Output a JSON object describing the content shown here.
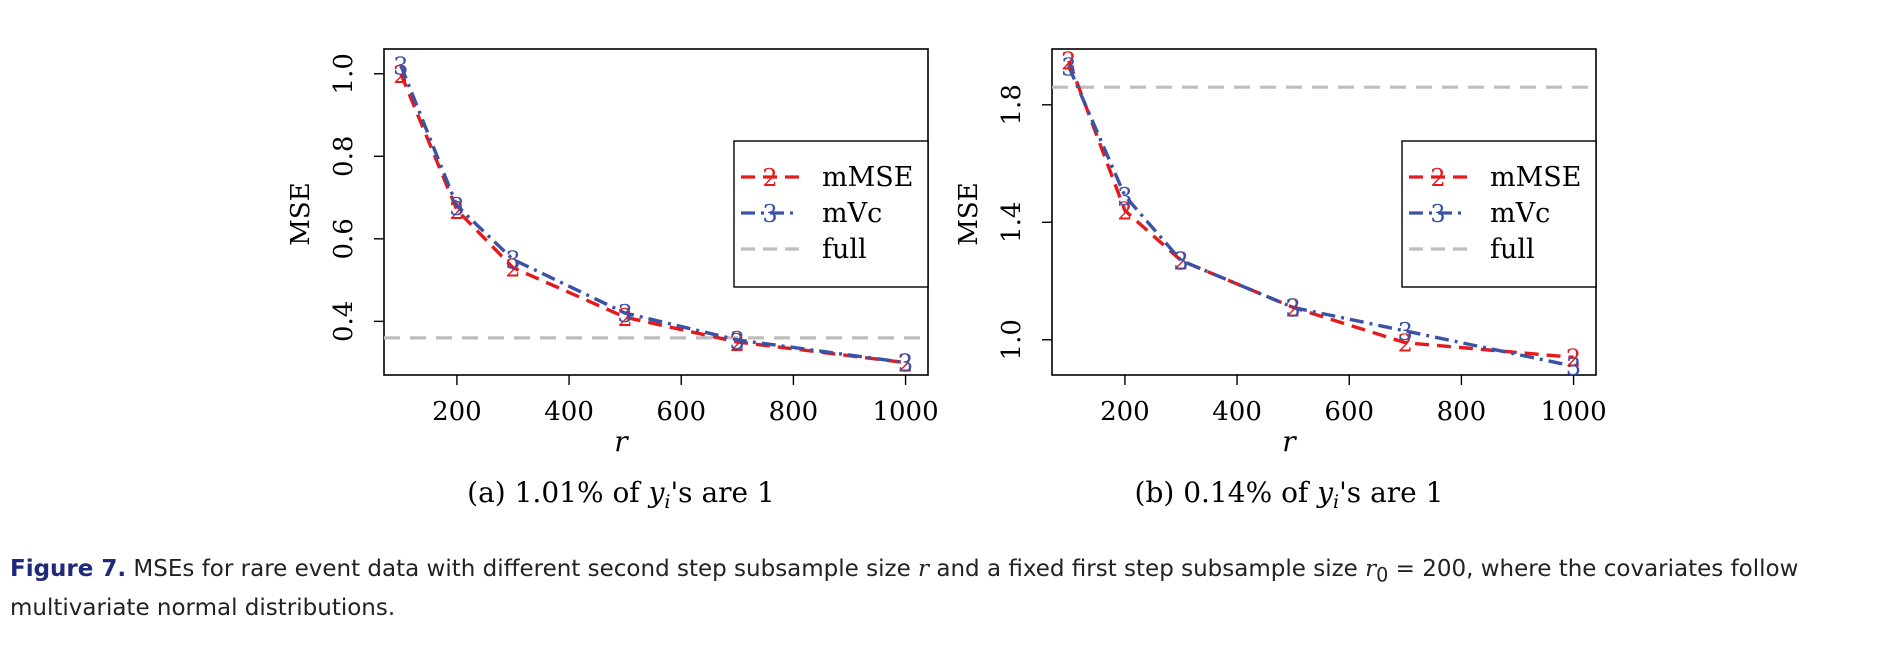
{
  "colors": {
    "mMSE": "#e41a1c",
    "mVc": "#3a53a4",
    "full": "#bdbdbd",
    "caption_label": "#1f2a7a"
  },
  "chart_data": [
    {
      "type": "line",
      "subtitle": "(a) 1.01% of y_i's are 1",
      "xlabel": "r",
      "ylabel": "MSE",
      "xlim": [
        70,
        1040
      ],
      "ylim": [
        0.27,
        1.06
      ],
      "xticks": [
        200,
        400,
        600,
        800,
        1000
      ],
      "yticks": [
        0.4,
        0.6,
        0.8,
        1.0
      ],
      "ytick_labels": [
        "0.4",
        "0.6",
        "0.8",
        "1.0"
      ],
      "grid": false,
      "legend_position": "right",
      "x": [
        100,
        200,
        300,
        500,
        700,
        1000
      ],
      "series": [
        {
          "name": "mMSE",
          "marker": "2",
          "style": "dashed",
          "values": [
            1.0,
            0.67,
            0.53,
            0.41,
            0.35,
            0.3
          ]
        },
        {
          "name": "mVc",
          "marker": "3",
          "style": "dashdot",
          "values": [
            1.02,
            0.68,
            0.55,
            0.42,
            0.355,
            0.3
          ]
        },
        {
          "name": "full",
          "style": "dashed-horizontal",
          "value": 0.36
        }
      ]
    },
    {
      "type": "line",
      "subtitle": "(b) 0.14% of y_i's are 1",
      "xlabel": "r",
      "ylabel": "MSE",
      "xlim": [
        70,
        1040
      ],
      "ylim": [
        0.88,
        1.99
      ],
      "xticks": [
        200,
        400,
        600,
        800,
        1000
      ],
      "yticks": [
        1.0,
        1.4,
        1.8
      ],
      "ytick_labels": [
        "1.0",
        "1.4",
        "1.8"
      ],
      "grid": false,
      "legend_position": "right",
      "x": [
        100,
        200,
        300,
        500,
        700,
        1000
      ],
      "series": [
        {
          "name": "mMSE",
          "marker": "2",
          "style": "dashed",
          "values": [
            1.95,
            1.44,
            1.27,
            1.11,
            0.99,
            0.94
          ]
        },
        {
          "name": "mVc",
          "marker": "3",
          "style": "dashdot",
          "values": [
            1.93,
            1.49,
            1.27,
            1.11,
            1.03,
            0.91
          ]
        },
        {
          "name": "full",
          "style": "dashed-horizontal",
          "value": 1.86
        }
      ]
    }
  ],
  "caption": {
    "label": "Figure 7.",
    "text_before": " MSEs for rare event data with different second step subsample size ",
    "var_r": "r",
    "text_middle": " and a fixed first step subsample size ",
    "var_r0": "r",
    "sub_0": "0",
    "text_after": " = 200, where the covariates follow multivariate normal distributions."
  }
}
